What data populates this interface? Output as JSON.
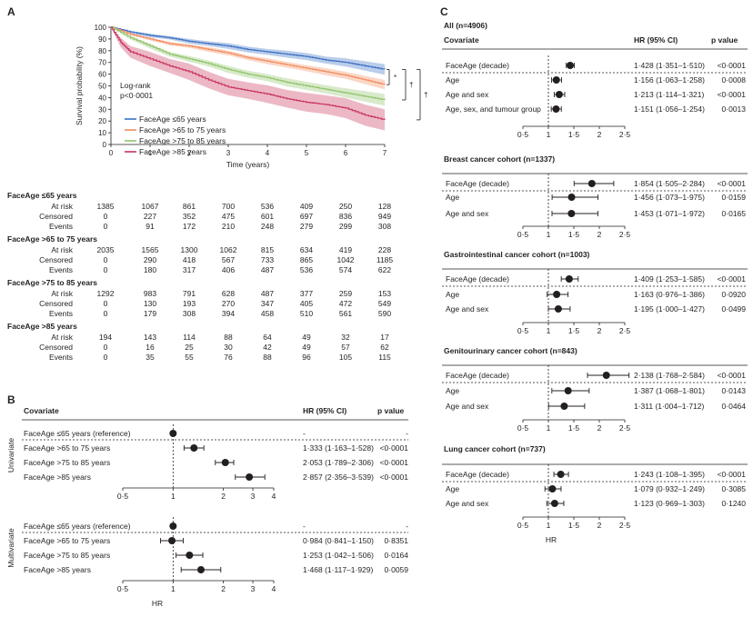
{
  "colors": {
    "c65": "#3a6fc4",
    "c75": "#f28c5e",
    "c85": "#8fc46a",
    "cgt85": "#c8335b",
    "text": "#231f20",
    "rule": "#231f20"
  },
  "panelA": {
    "letter": "A",
    "ylabel": "Survival probability (%)",
    "xlabel": "Time (years)",
    "yticks": [
      "0",
      "10",
      "20",
      "30",
      "40",
      "50",
      "60",
      "70",
      "80",
      "90",
      "100"
    ],
    "xticks": [
      "0",
      "1",
      "2",
      "3",
      "4",
      "5",
      "6",
      "7"
    ],
    "logrank_line1": "Log-rank",
    "logrank_line2": "p<0·0001",
    "legend": [
      "FaceAge ≤65 years",
      "FaceAge >65 to 75 years",
      "FaceAge >75 to 85 years",
      "FaceAge >85 years"
    ],
    "sig_marks": [
      "*",
      "†",
      "†"
    ],
    "risk_table": [
      {
        "group": "FaceAge ≤65 years",
        "rows": [
          {
            "label": "At risk",
            "values": [
              "1385",
              "1067",
              "861",
              "700",
              "536",
              "409",
              "250",
              "128"
            ]
          },
          {
            "label": "Censored",
            "values": [
              "0",
              "227",
              "352",
              "475",
              "601",
              "697",
              "836",
              "949"
            ]
          },
          {
            "label": "Events",
            "values": [
              "0",
              "91",
              "172",
              "210",
              "248",
              "279",
              "299",
              "308"
            ]
          }
        ]
      },
      {
        "group": "FaceAge >65 to 75 years",
        "rows": [
          {
            "label": "At risk",
            "values": [
              "2035",
              "1565",
              "1300",
              "1062",
              "815",
              "634",
              "419",
              "228"
            ]
          },
          {
            "label": "Censored",
            "values": [
              "0",
              "290",
              "418",
              "567",
              "733",
              "865",
              "1042",
              "1185"
            ]
          },
          {
            "label": "Events",
            "values": [
              "0",
              "180",
              "317",
              "406",
              "487",
              "536",
              "574",
              "622"
            ]
          }
        ]
      },
      {
        "group": "FaceAge >75 to 85 years",
        "rows": [
          {
            "label": "At risk",
            "values": [
              "1292",
              "983",
              "791",
              "628",
              "487",
              "377",
              "259",
              "153"
            ]
          },
          {
            "label": "Censored",
            "values": [
              "0",
              "130",
              "193",
              "270",
              "347",
              "405",
              "472",
              "549"
            ]
          },
          {
            "label": "Events",
            "values": [
              "0",
              "179",
              "308",
              "394",
              "458",
              "510",
              "561",
              "590"
            ]
          }
        ]
      },
      {
        "group": "FaceAge >85 years",
        "rows": [
          {
            "label": "At risk",
            "values": [
              "194",
              "143",
              "114",
              "88",
              "64",
              "49",
              "32",
              "17"
            ]
          },
          {
            "label": "Censored",
            "values": [
              "0",
              "16",
              "25",
              "30",
              "42",
              "49",
              "57",
              "62"
            ]
          },
          {
            "label": "Events",
            "values": [
              "0",
              "35",
              "55",
              "76",
              "88",
              "96",
              "105",
              "115"
            ]
          }
        ]
      }
    ]
  },
  "panelB": {
    "letter": "B",
    "hdr_cov": "Covariate",
    "hdr_hr": "HR (95% CI)",
    "hdr_p": "p value",
    "xticks": [
      "0·5",
      "1",
      "2",
      "3",
      "4"
    ],
    "xlabel": "HR",
    "blocks": [
      {
        "side": "Univariate",
        "rows": [
          {
            "label": "FaceAge ≤65 years (reference)",
            "hr_text": "-",
            "p": "-"
          },
          {
            "label": "FaceAge >65 to 75 years",
            "hr_text": "1·333 (1·163–1·528)",
            "p": "<0·0001"
          },
          {
            "label": "FaceAge >75 to 85 years",
            "hr_text": "2·053 (1·789–2·306)",
            "p": "<0·0001"
          },
          {
            "label": "FaceAge >85 years",
            "hr_text": "2·857 (2·356–3·539)",
            "p": "<0·0001"
          }
        ]
      },
      {
        "side": "Multivariate",
        "rows": [
          {
            "label": "FaceAge ≤65 years (reference)",
            "hr_text": "-",
            "p": "-"
          },
          {
            "label": "FaceAge >65 to 75 years",
            "hr_text": "0·984 (0·841–1·150)",
            "p": "0·8351"
          },
          {
            "label": "FaceAge >75 to 85 years",
            "hr_text": "1·253 (1·042–1·506)",
            "p": "0·0164"
          },
          {
            "label": "FaceAge >85 years",
            "hr_text": "1·468 (1·117–1·929)",
            "p": "0·0059"
          }
        ]
      }
    ]
  },
  "panelC": {
    "letter": "C",
    "hdr_cov": "Covariate",
    "hdr_hr": "HR (95% CI)",
    "hdr_p": "p value",
    "xticks": [
      "0·5",
      "1",
      "1·5",
      "2",
      "2·5"
    ],
    "xlabel": "HR",
    "blocks": [
      {
        "title": "All (n=4906)",
        "rows": [
          {
            "label": "FaceAge (decade)",
            "hr_text": "1·428 (1·351–1·510)",
            "p": "<0·0001"
          },
          {
            "label": "Age",
            "hr_text": "1·156 (1·063–1·258)",
            "p": "0·0008"
          },
          {
            "label": "Age and sex",
            "hr_text": "1·213 (1·114–1·321)",
            "p": "<0·0001"
          },
          {
            "label": "Age, sex, and tumour group",
            "hr_text": "1·151 (1·056–1·254)",
            "p": "0·0013"
          }
        ]
      },
      {
        "title": "Breast cancer cohort (n=1337)",
        "rows": [
          {
            "label": "FaceAge (decade)",
            "hr_text": "1·854 (1·505–2·284)",
            "p": "<0·0001"
          },
          {
            "label": "Age",
            "hr_text": "1·456 (1·073–1·975)",
            "p": "0·0159"
          },
          {
            "label": "Age and sex",
            "hr_text": "1·453 (1·071–1·972)",
            "p": "0·0165"
          }
        ]
      },
      {
        "title": "Gastrointestinal cancer cohort (n=1003)",
        "rows": [
          {
            "label": "FaceAge (decade)",
            "hr_text": "1·409 (1·253–1·585)",
            "p": "<0·0001"
          },
          {
            "label": "Age",
            "hr_text": "1·163 (0·976–1·386)",
            "p": "0·0920"
          },
          {
            "label": "Age and sex",
            "hr_text": "1·195 (1·000–1·427)",
            "p": "0·0499"
          }
        ]
      },
      {
        "title": "Genitourinary cancer cohort (n=843)",
        "rows": [
          {
            "label": "FaceAge (decade)",
            "hr_text": "2·138 (1·768–2·584)",
            "p": "<0·0001"
          },
          {
            "label": "Age",
            "hr_text": "1·387 (1·068–1·801)",
            "p": "0·0143"
          },
          {
            "label": "Age and sex",
            "hr_text": "1·311 (1·004–1·712)",
            "p": "0·0464"
          }
        ]
      },
      {
        "title": "Lung cancer cohort (n=737)",
        "rows": [
          {
            "label": "FaceAge (decade)",
            "hr_text": "1·243 (1·108–1·395)",
            "p": "<0·0001"
          },
          {
            "label": "Age",
            "hr_text": "1·079 (0·932–1·249)",
            "p": "0·3085"
          },
          {
            "label": "Age and sex",
            "hr_text": "1·123 (0·969–1·303)",
            "p": "0·1240"
          }
        ]
      }
    ]
  },
  "chart_data": [
    {
      "type": "line",
      "xlabel": "Time (years)",
      "ylabel": "Survival probability (%)",
      "xlim": [
        0,
        7
      ],
      "ylim": [
        0,
        100
      ],
      "legend_position": "bottom-left",
      "series": [
        {
          "name": "FaceAge ≤65 years",
          "color": "#3a6fc4",
          "x": [
            0,
            0.5,
            1,
            1.5,
            2,
            2.5,
            3,
            3.5,
            4,
            4.5,
            5,
            5.5,
            6,
            6.5,
            7
          ],
          "y": [
            100,
            96,
            93,
            91,
            88,
            86,
            84,
            81,
            79,
            77,
            75,
            72,
            70,
            67,
            64
          ],
          "ci_half": [
            0,
            1,
            1.5,
            1.5,
            2,
            2,
            2.5,
            2.5,
            2.5,
            3,
            3,
            3,
            3.5,
            4,
            4.5
          ]
        },
        {
          "name": "FaceAge >65 to 75 years",
          "color": "#f28c5e",
          "x": [
            0,
            0.5,
            1,
            1.5,
            2,
            2.5,
            3,
            3.5,
            4,
            4.5,
            5,
            5.5,
            6,
            6.5,
            7
          ],
          "y": [
            100,
            94,
            90,
            86,
            84,
            81,
            78,
            74,
            71,
            68,
            65,
            62,
            59,
            55,
            51
          ],
          "ci_half": [
            0,
            1,
            1.2,
            1.5,
            1.5,
            2,
            2,
            2,
            2.5,
            2.5,
            2.5,
            3,
            3,
            3.5,
            4
          ]
        },
        {
          "name": "FaceAge >75 to 85 years",
          "color": "#8fc46a",
          "x": [
            0,
            0.5,
            1,
            1.5,
            2,
            2.5,
            3,
            3.5,
            4,
            4.5,
            5,
            5.5,
            6,
            6.5,
            7
          ],
          "y": [
            100,
            91,
            84,
            77,
            73,
            69,
            64,
            60,
            57,
            53,
            50,
            47,
            44,
            41,
            38
          ],
          "ci_half": [
            0,
            1.5,
            2,
            2,
            2.5,
            2.5,
            3,
            3,
            3,
            3.5,
            3.5,
            3.5,
            4,
            4.5,
            5
          ]
        },
        {
          "name": "FaceAge >85 years",
          "color": "#c8335b",
          "x": [
            0,
            0.25,
            0.5,
            1,
            1.5,
            2,
            2.5,
            3,
            3.5,
            4,
            4.5,
            5,
            5.5,
            6,
            6.5,
            7
          ],
          "y": [
            100,
            87,
            79,
            73,
            67,
            62,
            55,
            49,
            46,
            43,
            39,
            36,
            34,
            31,
            25,
            21
          ],
          "ci_half": [
            0,
            4,
            5,
            6,
            6,
            7,
            7,
            7,
            7,
            7.5,
            7.5,
            8,
            8,
            8.5,
            9,
            9
          ]
        }
      ]
    },
    {
      "type": "scatter",
      "subtype": "forest",
      "panel": "B",
      "xlabel": "HR",
      "xlim": [
        0.5,
        4
      ],
      "reference_line": 1,
      "series": [
        {
          "name": "Univariate",
          "labels": [
            "FaceAge ≤65 years (reference)",
            "FaceAge >65 to 75 years",
            "FaceAge >75 to 85 years",
            "FaceAge >85 years"
          ],
          "hr": [
            1,
            1.333,
            2.053,
            2.857
          ],
          "lo": [
            1,
            1.163,
            1.789,
            2.356
          ],
          "hi": [
            1,
            1.528,
            2.306,
            3.539
          ]
        },
        {
          "name": "Multivariate",
          "labels": [
            "FaceAge ≤65 years (reference)",
            "FaceAge >65 to 75 years",
            "FaceAge >75 to 85 years",
            "FaceAge >85 years"
          ],
          "hr": [
            1,
            0.984,
            1.253,
            1.468
          ],
          "lo": [
            1,
            0.841,
            1.042,
            1.117
          ],
          "hi": [
            1,
            1.15,
            1.506,
            1.929
          ]
        }
      ]
    },
    {
      "type": "scatter",
      "subtype": "forest",
      "panel": "C",
      "xlabel": "HR",
      "xlim": [
        0.5,
        2.5
      ],
      "reference_line": 1,
      "series": [
        {
          "name": "All (n=4906)",
          "labels": [
            "FaceAge (decade)",
            "Age",
            "Age and sex",
            "Age, sex, and tumour group"
          ],
          "hr": [
            1.428,
            1.156,
            1.213,
            1.151
          ],
          "lo": [
            1.351,
            1.063,
            1.114,
            1.056
          ],
          "hi": [
            1.51,
            1.258,
            1.321,
            1.254
          ]
        },
        {
          "name": "Breast cancer cohort (n=1337)",
          "labels": [
            "FaceAge (decade)",
            "Age",
            "Age and sex"
          ],
          "hr": [
            1.854,
            1.456,
            1.453
          ],
          "lo": [
            1.505,
            1.073,
            1.071
          ],
          "hi": [
            2.284,
            1.975,
            1.972
          ]
        },
        {
          "name": "Gastrointestinal cancer cohort (n=1003)",
          "labels": [
            "FaceAge (decade)",
            "Age",
            "Age and sex"
          ],
          "hr": [
            1.409,
            1.163,
            1.195
          ],
          "lo": [
            1.253,
            0.976,
            1.0
          ],
          "hi": [
            1.585,
            1.386,
            1.427
          ]
        },
        {
          "name": "Genitourinary cancer cohort (n=843)",
          "labels": [
            "FaceAge (decade)",
            "Age",
            "Age and sex"
          ],
          "hr": [
            2.138,
            1.387,
            1.311
          ],
          "lo": [
            1.768,
            1.068,
            1.004
          ],
          "hi": [
            2.584,
            1.801,
            1.712
          ]
        },
        {
          "name": "Lung cancer cohort (n=737)",
          "labels": [
            "FaceAge (decade)",
            "Age",
            "Age and sex"
          ],
          "hr": [
            1.243,
            1.079,
            1.123
          ],
          "lo": [
            1.108,
            0.932,
            0.969
          ],
          "hi": [
            1.395,
            1.249,
            1.303
          ]
        }
      ]
    }
  ]
}
